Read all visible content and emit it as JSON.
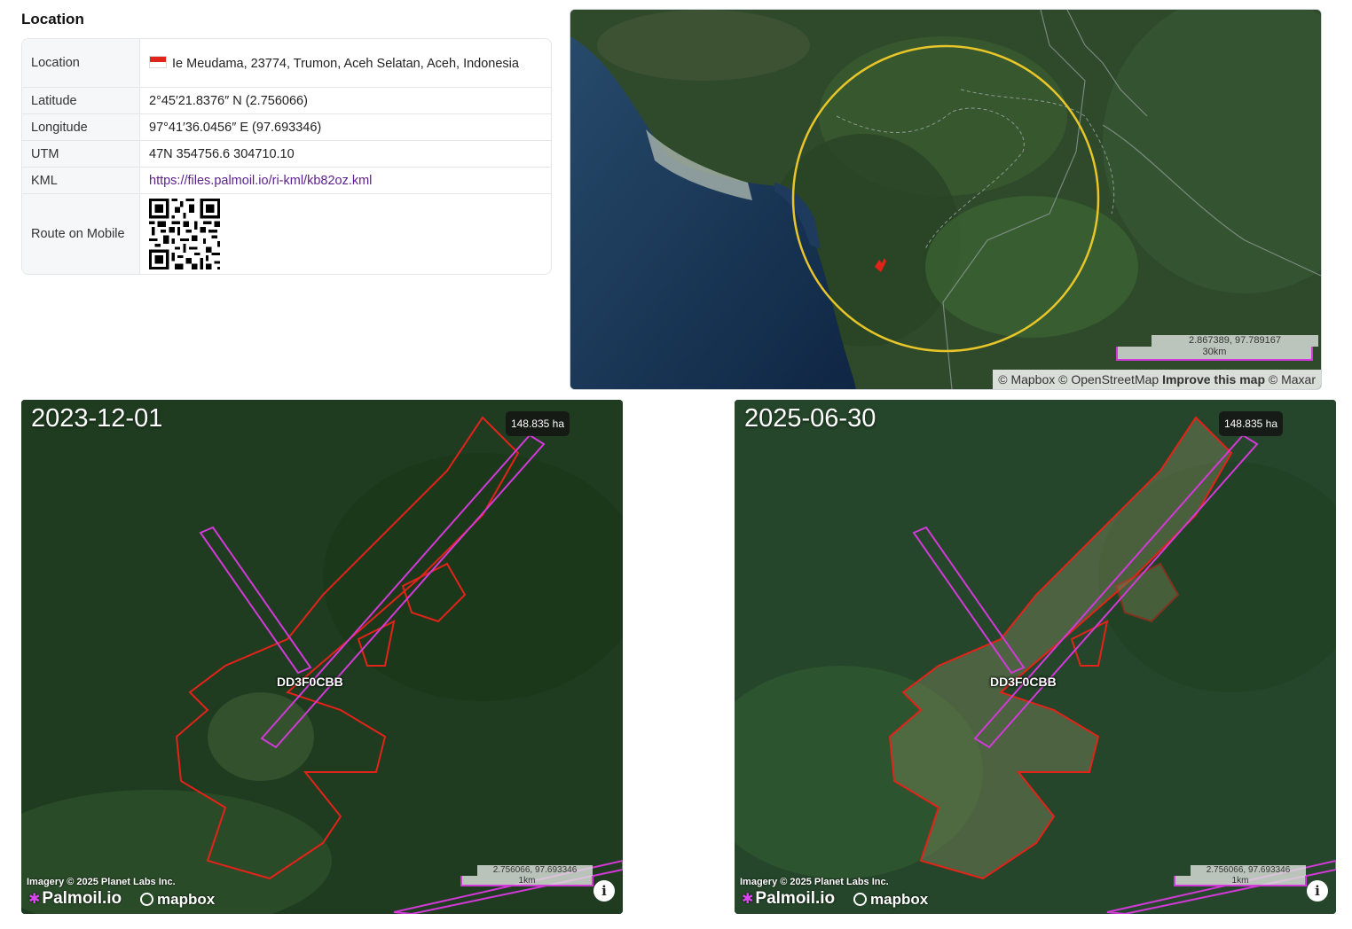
{
  "section": {
    "title": "Location"
  },
  "rows": [
    {
      "key": "Location",
      "value": "Ie Meudama, 23774, Trumon, Aceh Selatan, Aceh, Indonesia",
      "flag": "indonesia-flag"
    },
    {
      "key": "Latitude",
      "value": "2°45′21.8376″ N (2.756066)"
    },
    {
      "key": "Longitude",
      "value": "97°41′36.0456″ E (97.693346)"
    },
    {
      "key": "UTM",
      "value": "47N 354756.6 304710.10"
    },
    {
      "key": "KML",
      "value": "https://files.palmoil.io/ri-kml/kb82oz.kml"
    },
    {
      "key": "Route on Mobile",
      "value": "qr-code"
    }
  ],
  "overview_map": {
    "coord": "2.867389, 97.789167",
    "scale": "30km",
    "attribution_a": "© Mapbox © OpenStreetMap",
    "attribution_b": "Improve this map",
    "attribution_c": "© Maxar",
    "radius_circle_color": "#e8c62a"
  },
  "snapshots": [
    {
      "date": "2023-12-01",
      "area": "148.835 ha",
      "plot_id": "DD3F0CBB",
      "coord": "2.756066, 97.693346",
      "scale": "1km"
    },
    {
      "date": "2025-06-30",
      "area": "148.835 ha",
      "plot_id": "DD3F0CBB",
      "coord": "2.756066, 97.693346",
      "scale": "1km"
    }
  ],
  "credits": {
    "imagery": "Imagery © 2025 Planet Labs Inc.",
    "brand": "Palmoil.io",
    "mapbox": "mapbox",
    "info": "i"
  },
  "colors": {
    "boundary": "#e2231a",
    "corridor": "#d23ad8",
    "link": "#5b1f8a"
  }
}
